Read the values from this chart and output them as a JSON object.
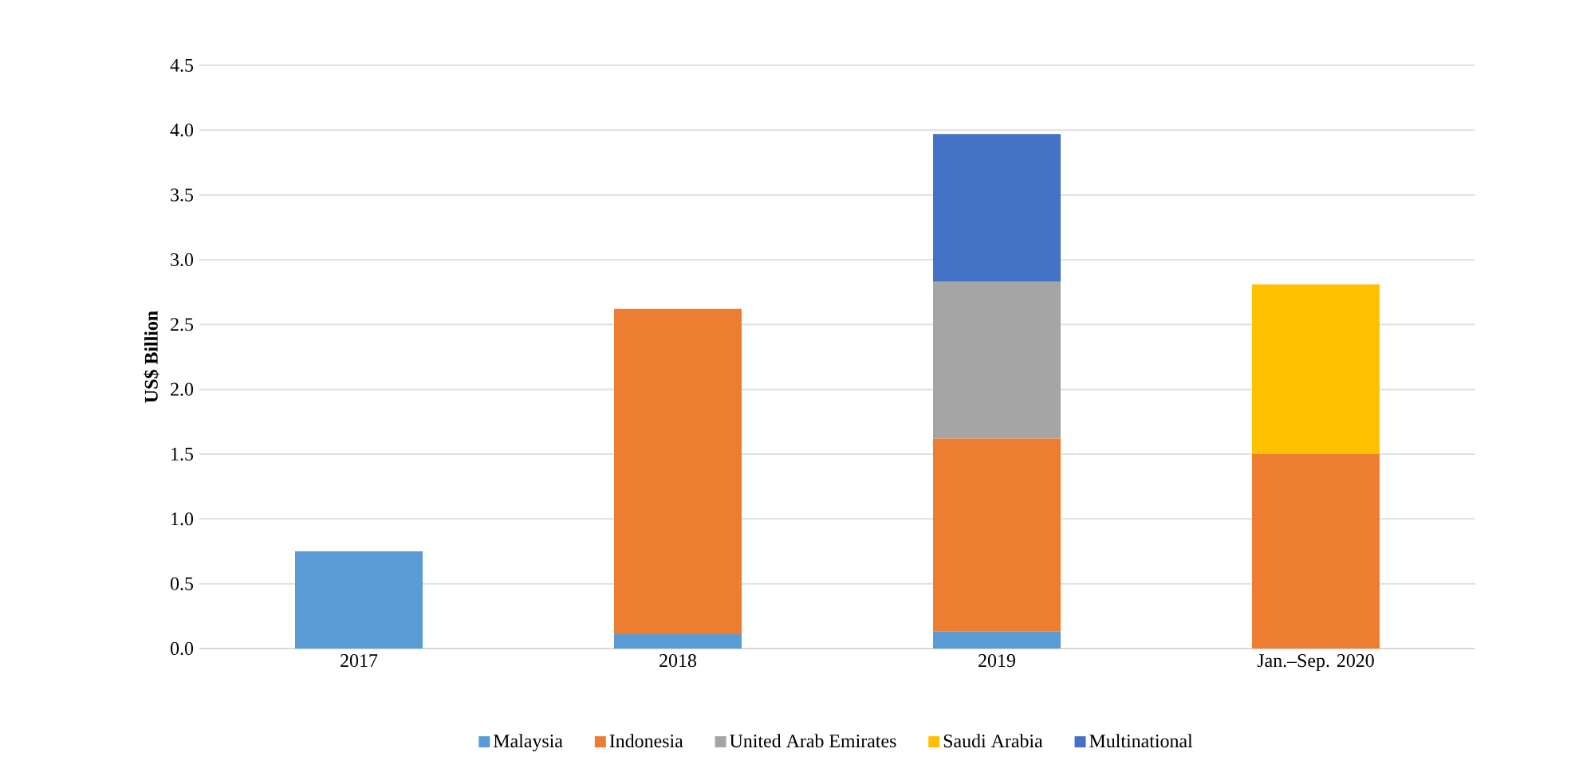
{
  "chart_data": {
    "type": "bar",
    "stacked": true,
    "ylabel": "US$ Billion",
    "categories": [
      "2017",
      "2018",
      "2019",
      "Jan.–Sep. 2020"
    ],
    "series": [
      {
        "name": "Malaysia",
        "color": "#5b9bd5",
        "values": [
          0.75,
          0.11,
          0.13,
          null
        ]
      },
      {
        "name": "Indonesia",
        "color": "#ed7d31",
        "values": [
          null,
          2.51,
          1.49,
          1.5
        ]
      },
      {
        "name": "United Arab Emirates",
        "color": "#a5a5a5",
        "values": [
          null,
          null,
          1.21,
          null
        ]
      },
      {
        "name": "Saudi Arabia",
        "color": "#ffc000",
        "values": [
          null,
          null,
          null,
          1.31
        ]
      },
      {
        "name": "Multinational",
        "color": "#4472c4",
        "values": [
          null,
          null,
          1.14,
          null
        ]
      }
    ],
    "ylim": [
      0,
      4.5
    ],
    "yticks": [
      {
        "value": 0,
        "label": "0.0"
      },
      {
        "value": 0.5,
        "label": "0.5"
      },
      {
        "value": 1,
        "label": "1.0"
      },
      {
        "value": 1.5,
        "label": "1.5"
      },
      {
        "value": 2,
        "label": "2.0"
      },
      {
        "value": 2.5,
        "label": "2.5"
      },
      {
        "value": 3,
        "label": "3.0"
      },
      {
        "value": 3.5,
        "label": "3.5"
      },
      {
        "value": 4,
        "label": "4.0"
      },
      {
        "value": 4.5,
        "label": "4.5"
      }
    ],
    "grid": "y",
    "legend": "bottom"
  }
}
